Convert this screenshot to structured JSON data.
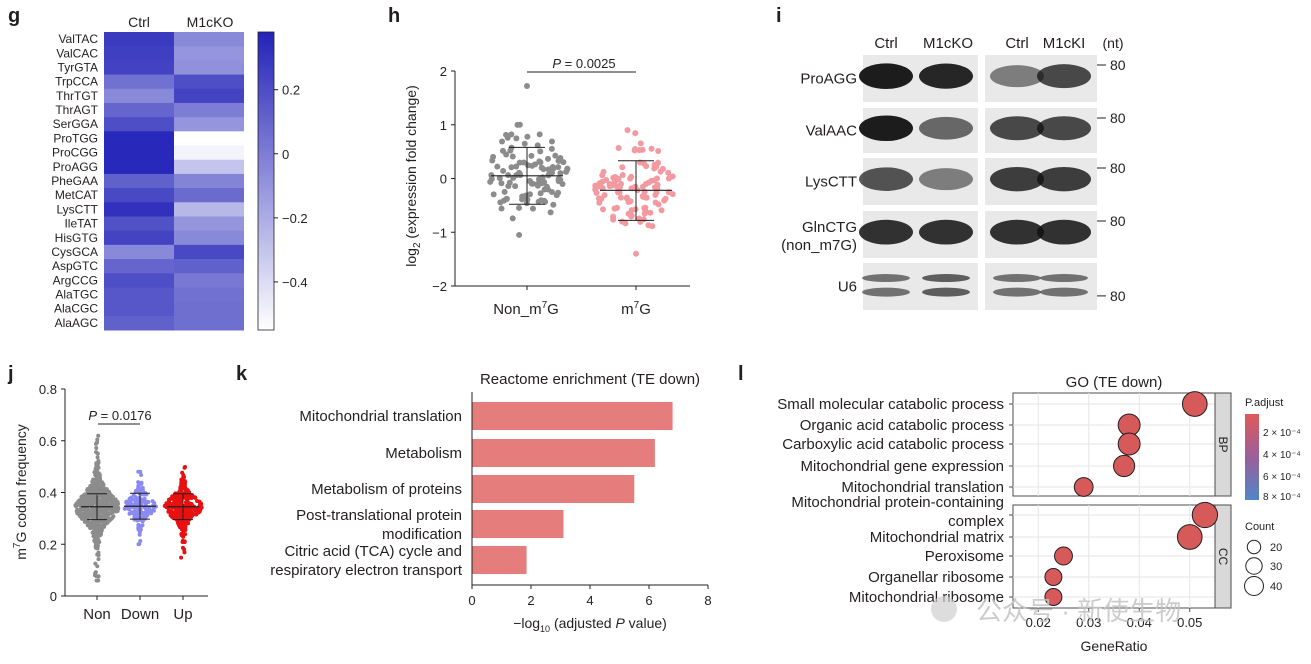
{
  "panels": {
    "g": {
      "label": "g",
      "columns": [
        "Ctrl",
        "M1cKO"
      ],
      "rows": [
        "ValTAC",
        "ValCAC",
        "TyrGTA",
        "TrpCCA",
        "ThrTGT",
        "ThrAGT",
        "SerGGA",
        "ProTGG",
        "ProCGG",
        "ProAGG",
        "PheGAA",
        "MetCAT",
        "LysCTT",
        "IleTAT",
        "HisGTG",
        "CysGCA",
        "AspGTC",
        "ArgCCG",
        "AlaTGC",
        "AlaCGC",
        "AlaAGC"
      ],
      "values": [
        [
          0.28,
          -0.05
        ],
        [
          0.26,
          -0.1
        ],
        [
          0.25,
          -0.08
        ],
        [
          0.05,
          0.2
        ],
        [
          -0.05,
          0.24
        ],
        [
          0.1,
          0.0
        ],
        [
          0.2,
          -0.1
        ],
        [
          0.36,
          -0.55
        ],
        [
          0.36,
          -0.5
        ],
        [
          0.36,
          -0.3
        ],
        [
          0.12,
          -0.03
        ],
        [
          0.22,
          0.08
        ],
        [
          0.32,
          -0.25
        ],
        [
          0.18,
          -0.1
        ],
        [
          0.24,
          -0.05
        ],
        [
          -0.05,
          0.22
        ],
        [
          0.1,
          0.12
        ],
        [
          0.2,
          0.02
        ],
        [
          0.16,
          0.05
        ],
        [
          0.16,
          0.06
        ],
        [
          0.12,
          0.06
        ]
      ],
      "colorbar_ticks": [
        "0.2",
        "0",
        "−0.2",
        "−0.4"
      ],
      "colorbar_tick_values": [
        0.2,
        0,
        -0.2,
        -0.4
      ],
      "color_min": -0.55,
      "color_max": 0.38,
      "color_high": "#2323b8",
      "color_low": "#ffffff"
    },
    "h": {
      "label": "h",
      "ylabel_main": "log",
      "ylabel_sub": "2",
      "ylabel_rest": " (expression fold change)",
      "y_ticks": [
        "2",
        "1",
        "0",
        "−1",
        "−2"
      ],
      "y_tick_values": [
        2,
        1,
        0,
        -1,
        -2
      ],
      "ylim": [
        -2,
        2
      ],
      "groups": [
        {
          "name_main": "Non_m",
          "name_sup": "",
          "name_rest": "",
          "full": "Non_m7G",
          "mean": 0.05,
          "sd_low": -0.48,
          "sd_high": 0.58,
          "color": "#8c8c8c",
          "n": 110,
          "min": -1.05,
          "max": 1.0,
          "outlier": 1.72
        },
        {
          "name_main": "m",
          "name_sup": "7",
          "name_rest": "G",
          "full": "m7G",
          "mean": -0.22,
          "sd_low": -0.78,
          "sd_high": 0.33,
          "color": "#f29aa0",
          "n": 110,
          "min": -1.58,
          "max": 0.9,
          "outlier": -1.4
        }
      ],
      "x_label_0_main": "Non_m",
      "x_label_0_sup": "7",
      "x_label_0_rest": "G",
      "x_label_1_main": "m",
      "x_label_1_sup": "7",
      "x_label_1_rest": "G",
      "pvalue_italic": "P",
      "pvalue_rest": " = 0.0025"
    },
    "i": {
      "label": "i",
      "left_headers": [
        "Ctrl",
        "M1cKO"
      ],
      "right_headers": [
        "Ctrl",
        "M1cKI"
      ],
      "unit": "(nt)",
      "rows": [
        {
          "name": "ProAGG",
          "name2": ""
        },
        {
          "name": "ValAAC",
          "name2": ""
        },
        {
          "name": "LysCTT",
          "name2": ""
        },
        {
          "name": "GlnCTG",
          "name2": "(non_m7G)"
        },
        {
          "name": "U6",
          "name2": ""
        }
      ],
      "marker_labels": [
        "80",
        "80",
        "80",
        "80",
        "80"
      ]
    },
    "j": {
      "label": "j",
      "ylabel_main": "m",
      "ylabel_sup": "7",
      "ylabel_rest": "G codon frequency",
      "y_ticks": [
        "0.8",
        "0.6",
        "0.4",
        "0.2",
        "0"
      ],
      "y_tick_values": [
        0.8,
        0.6,
        0.4,
        0.2,
        0
      ],
      "ylim": [
        0,
        0.8
      ],
      "categories": [
        "Non",
        "Down",
        "Up"
      ],
      "colors": [
        "#8c8c8c",
        "#8a8af0",
        "#e81010"
      ],
      "means": [
        0.345,
        0.347,
        0.345
      ],
      "pvalue_italic": "P",
      "pvalue_rest": " = 0.0176"
    },
    "k": {
      "label": "k",
      "title": "Reactome enrichment (TE down)",
      "categories": [
        "Mitochondrial translation",
        "Metabolism",
        "Metabolism of proteins",
        "Post-translational protein",
        "modification",
        "Citric acid (TCA) cycle and",
        "respiratory electron transport"
      ],
      "bars": [
        {
          "label_lines": [
            "Mitochondrial translation"
          ],
          "value": 6.8
        },
        {
          "label_lines": [
            "Metabolism"
          ],
          "value": 6.2
        },
        {
          "label_lines": [
            "Metabolism of proteins"
          ],
          "value": 5.5
        },
        {
          "label_lines": [
            "Post-translational protein",
            "modification"
          ],
          "value": 3.1
        },
        {
          "label_lines": [
            "Citric acid (TCA) cycle and",
            "respiratory electron transport"
          ],
          "value": 1.85
        }
      ],
      "x_ticks": [
        "0",
        "2",
        "4",
        "6",
        "8"
      ],
      "x_tick_values": [
        0,
        2,
        4,
        6,
        8
      ],
      "xlim": [
        0,
        8
      ],
      "xlabel_pre": "−log",
      "xlabel_sub": "10",
      "xlabel_mid": " (adjusted ",
      "xlabel_italic": "P",
      "xlabel_post": " value)",
      "bar_color": "#e57d7d"
    },
    "l": {
      "label": "l",
      "title": "GO (TE down)",
      "facets": [
        {
          "name": "BP",
          "terms": [
            {
              "label": "Small molecular catabolic process",
              "ratio": 0.051,
              "count": 38
            },
            {
              "label": "Organic acid catabolic process",
              "ratio": 0.038,
              "count": 30
            },
            {
              "label": "Carboxylic acid catabolic process",
              "ratio": 0.038,
              "count": 30
            },
            {
              "label": "Mitochondrial gene expression",
              "ratio": 0.037,
              "count": 28
            },
            {
              "label": "Mitochondrial translation",
              "ratio": 0.029,
              "count": 22
            }
          ]
        },
        {
          "name": "CC",
          "terms": [
            {
              "label_lines": [
                "Mitochondrial protein-containing",
                "complex"
              ],
              "label": "Mitochondrial protein-containing complex",
              "ratio": 0.053,
              "count": 40
            },
            {
              "label": "Mitochondrial matrix",
              "ratio": 0.05,
              "count": 38
            },
            {
              "label": "Peroxisome",
              "ratio": 0.025,
              "count": 20
            },
            {
              "label": "Organellar ribosome",
              "ratio": 0.023,
              "count": 18
            },
            {
              "label": "Mitochondrial ribosome",
              "ratio": 0.023,
              "count": 18
            }
          ]
        }
      ],
      "x_ticks": [
        "0.02",
        "0.03",
        "0.04",
        "0.05"
      ],
      "x_tick_values": [
        0.02,
        0.03,
        0.04,
        0.05
      ],
      "xlim": [
        0.015,
        0.055
      ],
      "xlabel": "GeneRatio",
      "legend_padj_title": "P.adjust",
      "legend_padj_ticks": [
        "2 × 10⁻⁴",
        "4 × 10⁻⁴",
        "6 × 10⁻⁴",
        "8 × 10⁻⁴"
      ],
      "legend_count_title": "Count",
      "legend_count_ticks": [
        "20",
        "30",
        "40"
      ],
      "legend_count_values": [
        20,
        30,
        40
      ],
      "dot_color": "#d65a5a"
    }
  },
  "watermark": "公众号 · 新使生物"
}
